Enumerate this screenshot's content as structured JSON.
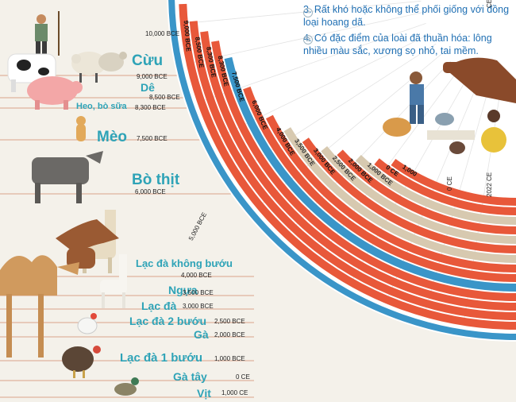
{
  "notes": {
    "note3": "3. Rất khó hoặc không thể phối giống với đồng loại hoang dã.",
    "note4": "4. Có đặc điểm của loài đã thuần hóa: lông nhiều màu sắc, xương sọ nhỏ, tai mềm."
  },
  "animals": [
    {
      "name": "Cừu",
      "date": "9,000 BCE"
    },
    {
      "name": "Dê",
      "date": "8,500 BCE"
    },
    {
      "name": "Heo, bò sữa",
      "date": "8,300 BCE"
    },
    {
      "name": "Mèo",
      "date": "7,500 BCE"
    },
    {
      "name": "Bò thịt",
      "date": "6,000 BCE"
    },
    {
      "name": "Lạc đà không bướu",
      "date": "4,000 BCE"
    },
    {
      "name": "Ngựa",
      "date": "3,500 BCE"
    },
    {
      "name": "Lạc đà",
      "date": "3,000 BCE"
    },
    {
      "name": "Lạc đà 2 bướu",
      "date": "2,500 BCE"
    },
    {
      "name": "Gà",
      "date": "2,000 BCE"
    },
    {
      "name": "Lạc đà 1 bướu",
      "date": "1,000 BCE"
    },
    {
      "name": "Gà tây",
      "date": "0 CE"
    },
    {
      "name": "Vịt",
      "date": "1,000 CE"
    }
  ],
  "scale": {
    "top_10000": "10,000 BCE",
    "mid_5000": "5,000 BCE",
    "zero": "0 CE",
    "end": "2022 CE",
    "top_edge": "CE"
  },
  "bands": [
    {
      "label": "9,000 BCE",
      "color": "#e8583a"
    },
    {
      "label": "8,500 BCE",
      "color": "#e8583a"
    },
    {
      "label": "8,300 BCE",
      "color": "#e8583a"
    },
    {
      "label": "8,300 BCE",
      "color": "#e8583a"
    },
    {
      "label": "7,500 BCE",
      "color": "#3a95c8"
    },
    {
      "label": "6,000 BCE",
      "color": "#e8583a"
    },
    {
      "label": "4,000 BCE",
      "color": "#e8583a"
    },
    {
      "label": "3,500 BCE",
      "color": "#d7c9b0"
    },
    {
      "label": "3,000 BCE",
      "color": "#e8583a"
    },
    {
      "label": "2,500 BCE",
      "color": "#d7c9b0"
    },
    {
      "label": "2,000 BCE",
      "color": "#e8583a"
    },
    {
      "label": "1,000 BCE",
      "color": "#d7c9b0"
    },
    {
      "label": "0 CE",
      "color": "#e8583a"
    },
    {
      "label": "1,000",
      "color": "#e8583a"
    }
  ],
  "colors": {
    "accent_red": "#e8583a",
    "accent_blue": "#3a95c8",
    "accent_beige": "#d7c9b0",
    "label_teal": "#2ea3b7",
    "note_blue": "#1f6fb3"
  },
  "icons": [
    "sheep-icon",
    "cow-icon",
    "pig-icon",
    "cat-icon",
    "bull-icon",
    "horse-icon",
    "llama-icon",
    "camel-icon",
    "chicken-icon",
    "turkey-icon",
    "duck-icon",
    "farmer-icon"
  ]
}
